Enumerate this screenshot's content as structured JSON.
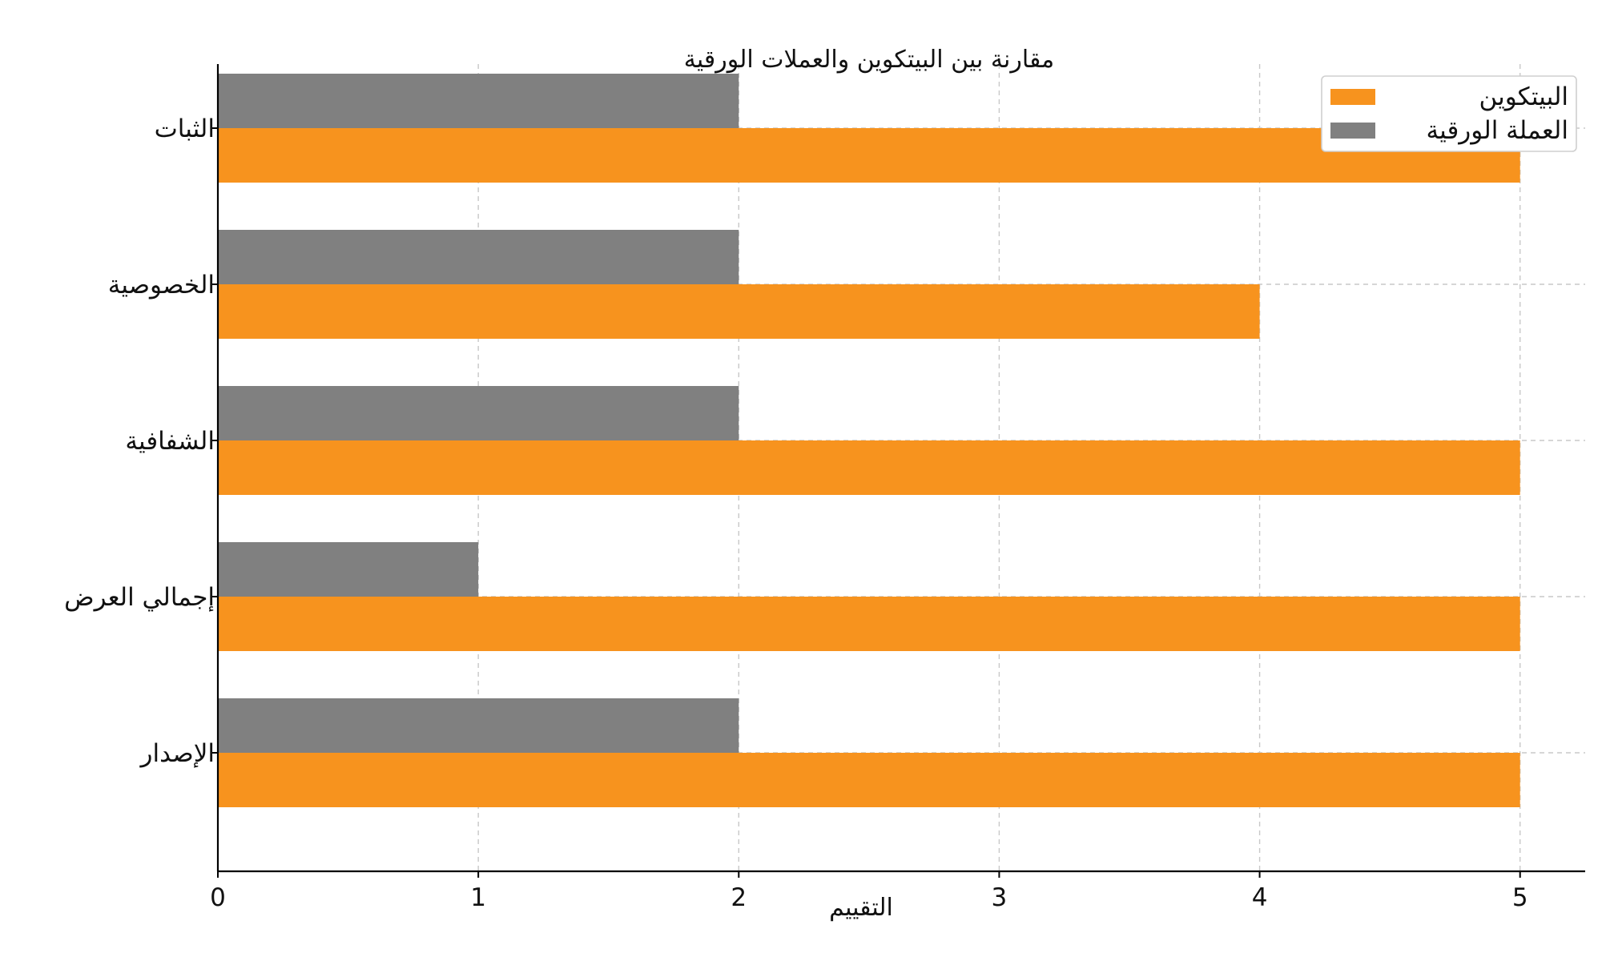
{
  "chart_data": {
    "type": "bar",
    "orientation": "horizontal",
    "title": "مقارنة بين البيتكوين والعملات الورقية",
    "xlabel": "التقييم",
    "ylabel": "",
    "categories": [
      "الثبات",
      "الخصوصية",
      "الشفافية",
      "إجمالي العرض",
      "الإصدار"
    ],
    "series": [
      {
        "name": "البيتكوين",
        "color": "#F7931E",
        "values": [
          5,
          4,
          5,
          5,
          5
        ]
      },
      {
        "name": "العملة الورقية",
        "color": "#808080",
        "values": [
          2,
          2,
          2,
          1,
          2
        ]
      }
    ],
    "xlim": [
      0,
      5.25
    ],
    "xticks": [
      "0",
      "1",
      "2",
      "3",
      "4",
      "5"
    ],
    "grid": true,
    "legend_position": "top-right"
  }
}
